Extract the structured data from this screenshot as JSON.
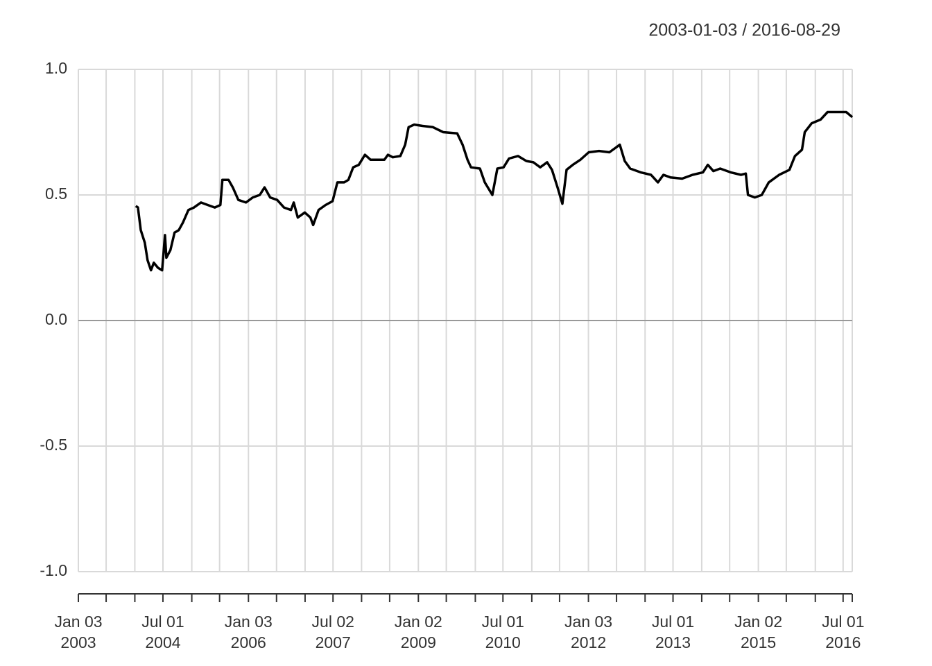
{
  "chart_data": {
    "type": "line",
    "title": "2003-01-03 / 2016-08-29",
    "x": [
      "2004-01-08",
      "2004-01-22",
      "2004-02-09",
      "2004-03-06",
      "2004-03-24",
      "2004-04-15",
      "2004-05-03",
      "2004-05-30",
      "2004-06-26",
      "2004-07-14",
      "2004-07-23",
      "2004-08-18",
      "2004-09-14",
      "2004-10-11",
      "2004-11-07",
      "2004-12-12",
      "2005-01-17",
      "2005-03-03",
      "2005-04-16",
      "2005-05-31",
      "2005-07-06",
      "2005-07-19",
      "2005-08-28",
      "2005-09-24",
      "2005-10-30",
      "2005-12-18",
      "2006-01-31",
      "2006-03-17",
      "2006-04-17",
      "2006-05-23",
      "2006-07-07",
      "2006-08-20",
      "2006-10-04",
      "2006-10-22",
      "2006-11-17",
      "2007-01-01",
      "2007-02-06",
      "2007-02-24",
      "2007-03-31",
      "2007-05-15",
      "2007-06-29",
      "2007-07-30",
      "2007-09-12",
      "2007-10-09",
      "2007-11-09",
      "2007-12-15",
      "2008-01-24",
      "2008-02-29",
      "2008-04-14",
      "2008-05-28",
      "2008-06-20",
      "2008-07-21",
      "2008-09-08",
      "2008-10-09",
      "2008-10-31",
      "2008-12-06",
      "2009-01-29",
      "2009-04-06",
      "2009-06-11",
      "2009-09-09",
      "2009-10-14",
      "2009-11-15",
      "2009-12-07",
      "2010-02-03",
      "2010-03-06",
      "2010-04-24",
      "2010-05-26",
      "2010-07-05",
      "2010-08-09",
      "2010-10-06",
      "2010-11-29",
      "2011-01-13",
      "2011-02-26",
      "2011-04-12",
      "2011-05-13",
      "2011-06-18",
      "2011-07-19",
      "2011-08-15",
      "2011-09-24",
      "2011-11-12",
      "2012-01-05",
      "2012-03-11",
      "2012-05-17",
      "2012-07-23",
      "2012-08-24",
      "2012-09-28",
      "2012-12-04",
      "2013-02-09",
      "2013-03-26",
      "2013-04-30",
      "2013-06-14",
      "2013-08-29",
      "2013-11-04",
      "2014-01-10",
      "2014-02-10",
      "2014-03-18",
      "2014-05-01",
      "2014-07-07",
      "2014-09-12",
      "2014-10-13",
      "2014-10-27",
      "2014-12-10",
      "2015-01-24",
      "2015-03-10",
      "2015-05-16",
      "2015-07-21",
      "2015-08-26",
      "2015-10-10",
      "2015-10-28",
      "2015-12-11",
      "2016-02-07",
      "2016-03-23",
      "2016-05-29",
      "2016-07-21",
      "2016-08-29"
    ],
    "values": [
      0.456,
      0.45,
      0.36,
      0.31,
      0.24,
      0.2,
      0.23,
      0.21,
      0.2,
      0.34,
      0.25,
      0.28,
      0.35,
      0.36,
      0.39,
      0.44,
      0.45,
      0.47,
      0.46,
      0.45,
      0.46,
      0.56,
      0.56,
      0.53,
      0.48,
      0.47,
      0.49,
      0.5,
      0.53,
      0.49,
      0.48,
      0.45,
      0.44,
      0.47,
      0.41,
      0.43,
      0.41,
      0.38,
      0.44,
      0.46,
      0.475,
      0.55,
      0.55,
      0.56,
      0.61,
      0.62,
      0.66,
      0.64,
      0.64,
      0.64,
      0.66,
      0.65,
      0.655,
      0.7,
      0.77,
      0.78,
      0.775,
      0.77,
      0.75,
      0.745,
      0.7,
      0.64,
      0.61,
      0.605,
      0.55,
      0.5,
      0.605,
      0.61,
      0.645,
      0.655,
      0.635,
      0.63,
      0.61,
      0.63,
      0.6,
      0.53,
      0.465,
      0.6,
      0.62,
      0.64,
      0.67,
      0.675,
      0.67,
      0.7,
      0.635,
      0.605,
      0.59,
      0.58,
      0.55,
      0.58,
      0.57,
      0.565,
      0.58,
      0.59,
      0.62,
      0.595,
      0.605,
      0.59,
      0.58,
      0.585,
      0.5,
      0.49,
      0.5,
      0.55,
      0.58,
      0.6,
      0.655,
      0.68,
      0.75,
      0.785,
      0.8,
      0.83,
      0.83,
      0.83,
      0.81
    ],
    "color": "#000000",
    "xlim": [
      "2003-01-03",
      "2016-08-29"
    ],
    "xticks": [
      {
        "value": "2003-01-03",
        "label": "Jan 03\n2003"
      },
      {
        "value": "2003-07-01",
        "label": null
      },
      {
        "value": "2004-01-02",
        "label": null
      },
      {
        "value": "2004-07-01",
        "label": "Jul 01\n2004"
      },
      {
        "value": "2005-01-03",
        "label": null
      },
      {
        "value": "2005-07-01",
        "label": null
      },
      {
        "value": "2006-01-03",
        "label": "Jan 03\n2006"
      },
      {
        "value": "2006-07-03",
        "label": null
      },
      {
        "value": "2007-01-03",
        "label": null
      },
      {
        "value": "2007-07-02",
        "label": "Jul 02\n2007"
      },
      {
        "value": "2008-01-02",
        "label": null
      },
      {
        "value": "2008-07-01",
        "label": null
      },
      {
        "value": "2009-01-02",
        "label": "Jan 02\n2009"
      },
      {
        "value": "2009-07-01",
        "label": null
      },
      {
        "value": "2010-01-04",
        "label": null
      },
      {
        "value": "2010-07-01",
        "label": "Jul 01\n2010"
      },
      {
        "value": "2011-01-03",
        "label": null
      },
      {
        "value": "2011-07-01",
        "label": null
      },
      {
        "value": "2012-01-03",
        "label": "Jan 03\n2012"
      },
      {
        "value": "2012-07-02",
        "label": null
      },
      {
        "value": "2013-01-02",
        "label": null
      },
      {
        "value": "2013-07-01",
        "label": "Jul 01\n2013"
      },
      {
        "value": "2014-01-02",
        "label": null
      },
      {
        "value": "2014-07-01",
        "label": null
      },
      {
        "value": "2015-01-02",
        "label": "Jan 02\n2015"
      },
      {
        "value": "2015-07-01",
        "label": null
      },
      {
        "value": "2016-01-04",
        "label": null
      },
      {
        "value": "2016-07-01",
        "label": "Jul 01\n2016"
      },
      {
        "value": "2016-08-29",
        "label": null
      }
    ],
    "ylim": [
      -1,
      1
    ],
    "yticks": [
      {
        "value": -1,
        "label": "-1.0"
      },
      {
        "value": -0.5,
        "label": "-0.5"
      },
      {
        "value": 0,
        "label": "0.0"
      },
      {
        "value": 0.5,
        "label": "0.5"
      },
      {
        "value": 1,
        "label": "1.0"
      }
    ],
    "grid": true
  }
}
